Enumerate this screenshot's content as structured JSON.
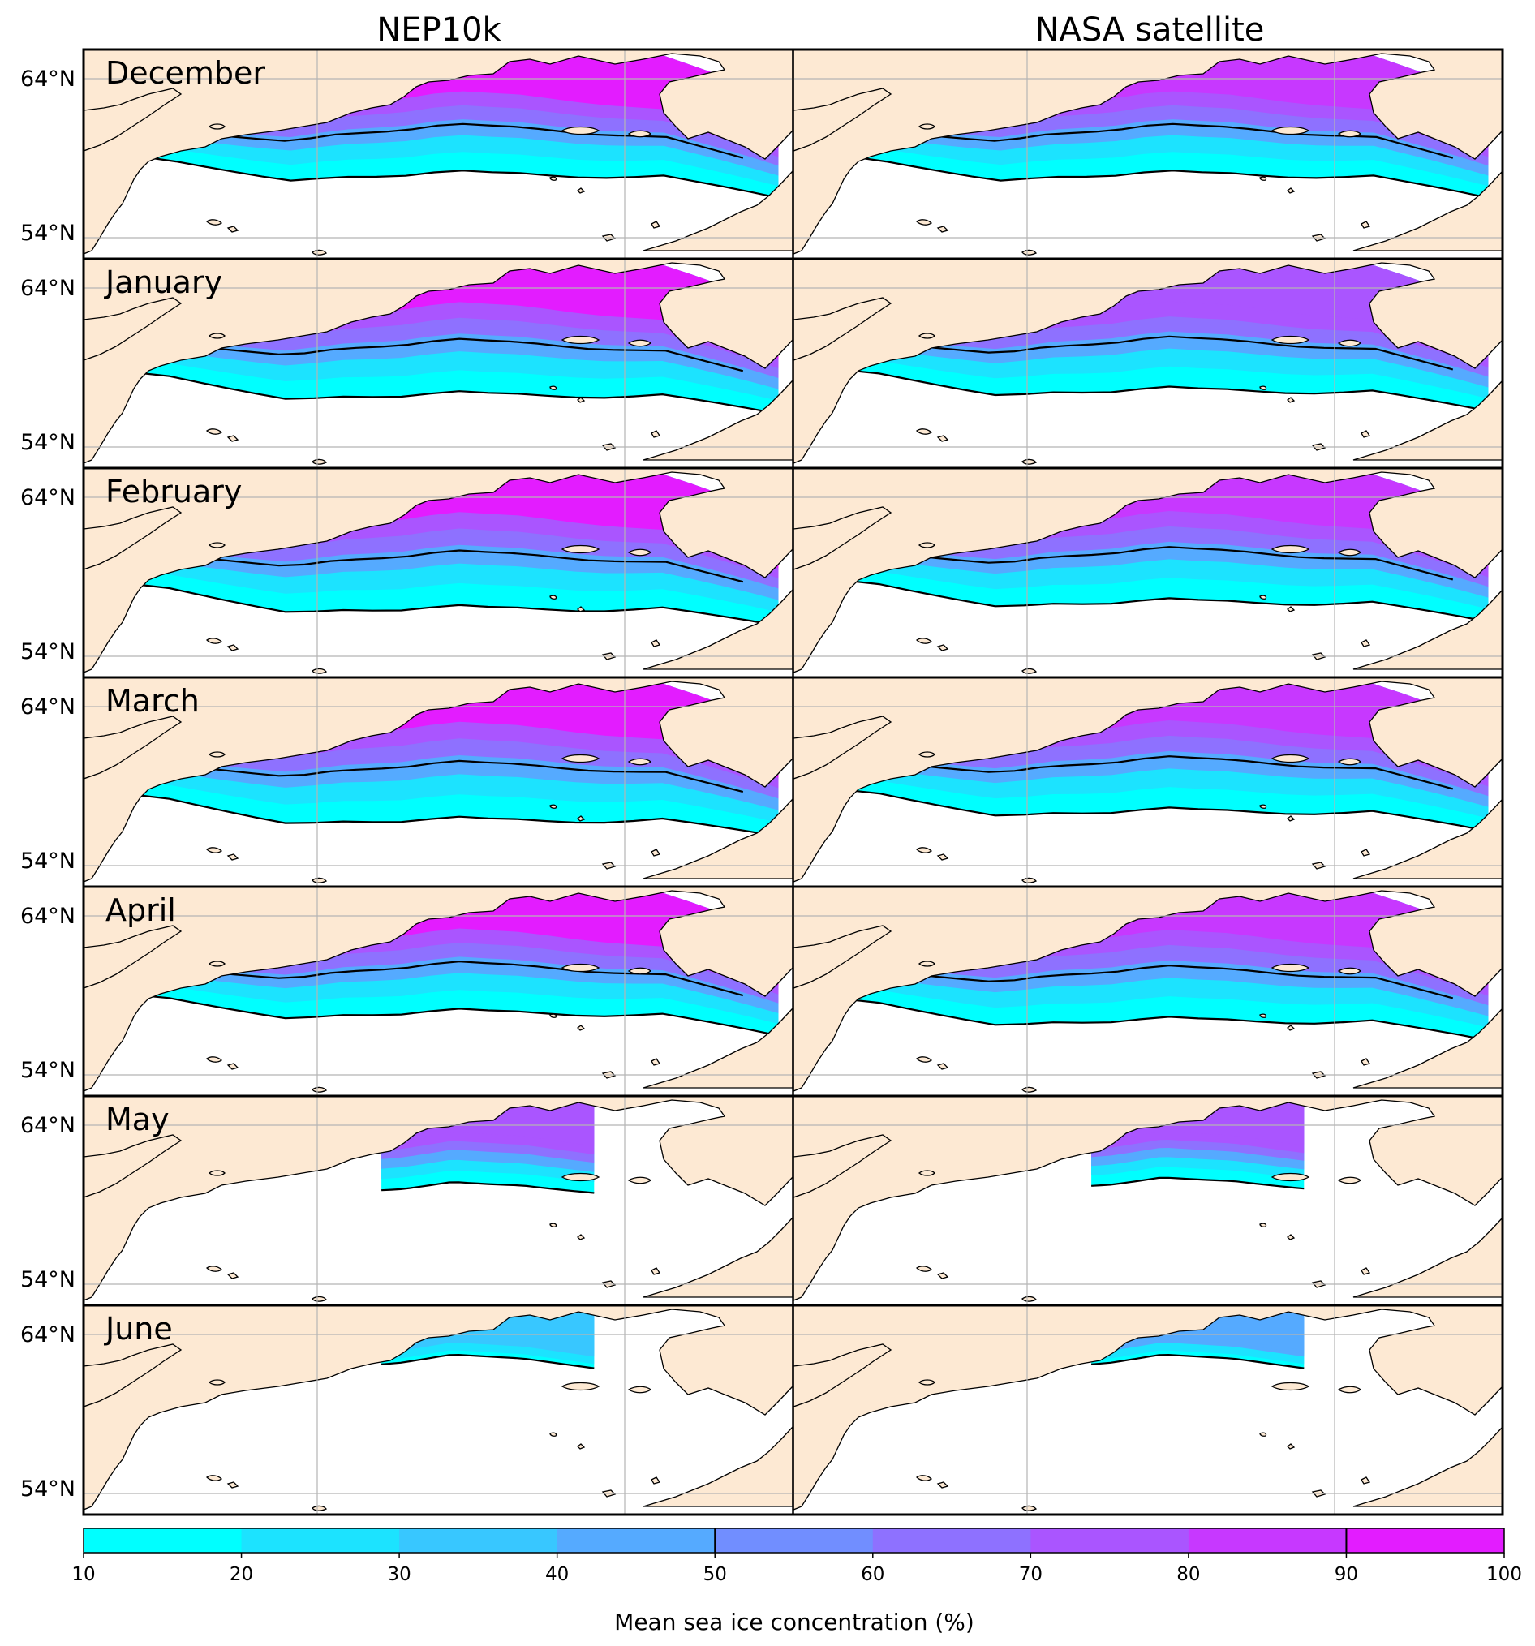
{
  "columns": [
    "NEP10k",
    "NASA satellite"
  ],
  "months": [
    "December",
    "January",
    "February",
    "March",
    "April",
    "May",
    "June"
  ],
  "lat_labels": [
    "64°N",
    "54°N"
  ],
  "colorbar": {
    "label": "Mean sea ice concentration (%)",
    "ticks": [
      "10",
      "20",
      "30",
      "40",
      "50",
      "60",
      "70",
      "80",
      "90",
      "100"
    ],
    "levels": [
      10,
      20,
      30,
      40,
      50,
      60,
      70,
      80,
      90,
      100
    ],
    "colors": [
      "#00ffff",
      "#1ce3ff",
      "#38c7ff",
      "#55aaff",
      "#718eff",
      "#8e71ff",
      "#aa55ff",
      "#c738ff",
      "#e31cff",
      "#ff00ff"
    ],
    "contour_levels": [
      50,
      90
    ]
  },
  "colors": {
    "land": "#fde9d3",
    "ocean": "#ffffff",
    "gridline": "#b5b5b5"
  },
  "ice_extent": {
    "NEP10k": [
      0.72,
      0.82,
      0.86,
      0.88,
      0.73,
      0.42,
      0.1
    ],
    "NASA satellite": [
      0.72,
      0.78,
      0.8,
      0.8,
      0.8,
      0.38,
      0.1
    ]
  },
  "peak_concentration": {
    "NEP10k": [
      92,
      95,
      98,
      98,
      92,
      72,
      35
    ],
    "NASA satellite": [
      82,
      78,
      80,
      82,
      82,
      70,
      40
    ]
  }
}
